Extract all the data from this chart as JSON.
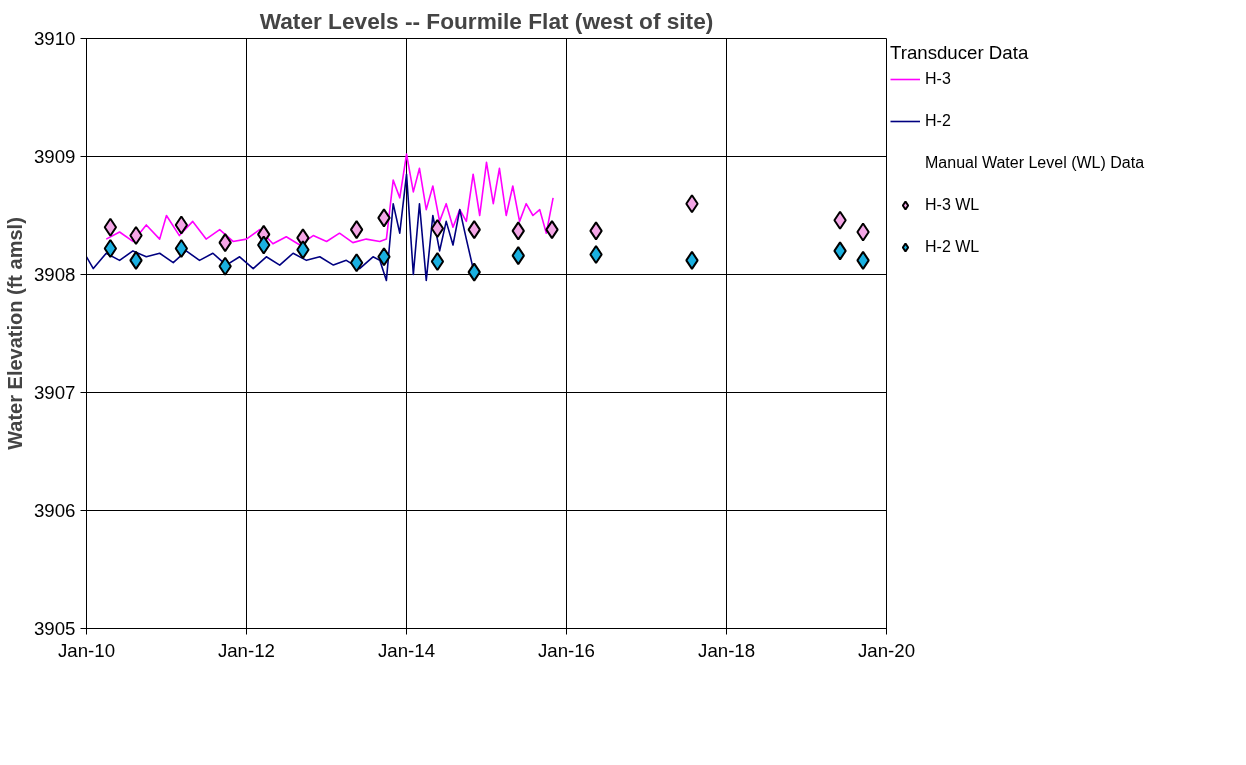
{
  "chart_data": {
    "type": "line",
    "title": "Water Levels -- Fourmile Flat (west of site)",
    "ylabel": "Water Elevation (ft amsl)",
    "legend_title": "Transducer Data",
    "annotations": [
      "Manual Water Level (WL) Data"
    ],
    "xlim": [
      "2010-01-01",
      "2020-01-01"
    ],
    "xticks": [
      {
        "value": "2010-01-01",
        "label": "Jan-10"
      },
      {
        "value": "2012-01-01",
        "label": "Jan-12"
      },
      {
        "value": "2014-01-01",
        "label": "Jan-14"
      },
      {
        "value": "2016-01-01",
        "label": "Jan-16"
      },
      {
        "value": "2018-01-01",
        "label": "Jan-18"
      },
      {
        "value": "2020-01-01",
        "label": "Jan-20"
      }
    ],
    "ylim": [
      3905,
      3910
    ],
    "yticks": [
      3905,
      3906,
      3907,
      3908,
      3909,
      3910
    ],
    "grid": true,
    "legend": "right",
    "series": [
      {
        "name": "H-3",
        "color": "#ff00ff",
        "x": [
          "2010-04",
          "2010-06",
          "2010-08",
          "2010-10",
          "2010-12",
          "2011-01",
          "2011-03",
          "2011-05",
          "2011-07",
          "2011-09",
          "2011-11",
          "2012-01",
          "2012-03",
          "2012-05",
          "2012-07",
          "2012-09",
          "2012-11",
          "2013-01",
          "2013-03",
          "2013-05",
          "2013-07",
          "2013-09",
          "2013-10",
          "2013-11",
          "2013-12",
          "2014-01",
          "2014-02",
          "2014-03",
          "2014-04",
          "2014-05",
          "2014-06",
          "2014-07",
          "2014-08",
          "2014-09",
          "2014-10",
          "2014-11",
          "2014-12",
          "2015-01",
          "2015-02",
          "2015-03",
          "2015-04",
          "2015-05",
          "2015-06",
          "2015-07",
          "2015-08",
          "2015-09",
          "2015-10",
          "2015-11"
        ],
        "values": [
          3908.3,
          3908.36,
          3908.28,
          3908.42,
          3908.3,
          3908.5,
          3908.33,
          3908.45,
          3908.3,
          3908.38,
          3908.28,
          3908.3,
          3908.38,
          3908.26,
          3908.32,
          3908.25,
          3908.33,
          3908.28,
          3908.35,
          3908.27,
          3908.3,
          3908.28,
          3908.3,
          3908.8,
          3908.65,
          3909.02,
          3908.7,
          3908.9,
          3908.55,
          3908.75,
          3908.45,
          3908.6,
          3908.4,
          3908.55,
          3908.45,
          3908.85,
          3908.5,
          3908.95,
          3908.6,
          3908.9,
          3908.5,
          3908.75,
          3908.45,
          3908.6,
          3908.5,
          3908.55,
          3908.35,
          3908.65
        ]
      },
      {
        "name": "H-2",
        "color": "#000080",
        "x": [
          "2010-01",
          "2010-02",
          "2010-04",
          "2010-06",
          "2010-08",
          "2010-10",
          "2010-12",
          "2011-02",
          "2011-04",
          "2011-06",
          "2011-08",
          "2011-10",
          "2011-12",
          "2012-02",
          "2012-04",
          "2012-06",
          "2012-08",
          "2012-10",
          "2012-12",
          "2013-02",
          "2013-04",
          "2013-06",
          "2013-08",
          "2013-09",
          "2013-10",
          "2013-11",
          "2013-12",
          "2014-01",
          "2014-02",
          "2014-03",
          "2014-04",
          "2014-05",
          "2014-06",
          "2014-07",
          "2014-08",
          "2014-09",
          "2014-10",
          "2014-11"
        ],
        "values": [
          3908.15,
          3908.05,
          3908.18,
          3908.12,
          3908.2,
          3908.15,
          3908.18,
          3908.1,
          3908.2,
          3908.12,
          3908.18,
          3908.08,
          3908.15,
          3908.05,
          3908.15,
          3908.08,
          3908.18,
          3908.12,
          3908.15,
          3908.08,
          3908.12,
          3908.05,
          3908.15,
          3908.12,
          3907.95,
          3908.6,
          3908.35,
          3908.85,
          3908.0,
          3908.6,
          3907.95,
          3908.5,
          3908.2,
          3908.45,
          3908.25,
          3908.55,
          3908.3,
          3908.05
        ]
      },
      {
        "name": "H-3 WL",
        "type": "scatter",
        "marker": "diamond",
        "color": "#f4a6e6",
        "x": [
          "2010-04-20",
          "2010-08-15",
          "2011-03-10",
          "2011-09-26",
          "2012-03-20",
          "2012-09-15",
          "2013-05-18",
          "2013-09-20",
          "2014-05-22",
          "2014-11-06",
          "2015-05-26",
          "2015-10-27",
          "2016-05-15",
          "2017-07-27",
          "2019-06-03",
          "2019-09-16"
        ],
        "values": [
          3908.4,
          3908.33,
          3908.42,
          3908.27,
          3908.34,
          3908.31,
          3908.38,
          3908.48,
          3908.39,
          3908.38,
          3908.37,
          3908.38,
          3908.37,
          3908.6,
          3908.46,
          3908.36
        ]
      },
      {
        "name": "H-2 WL",
        "type": "scatter",
        "marker": "diamond",
        "color": "#1ab0e0",
        "x": [
          "2010-04-20",
          "2010-08-15",
          "2011-03-10",
          "2011-09-26",
          "2012-03-20",
          "2012-09-15",
          "2013-05-18",
          "2013-09-20",
          "2014-05-22",
          "2014-11-06",
          "2015-05-26",
          "2016-05-15",
          "2017-07-27",
          "2019-06-03",
          "2019-09-16"
        ],
        "values": [
          3908.22,
          3908.12,
          3908.22,
          3908.07,
          3908.25,
          3908.21,
          3908.1,
          3908.15,
          3908.11,
          3908.02,
          3908.16,
          3908.17,
          3908.12,
          3908.2,
          3908.12
        ]
      }
    ]
  }
}
